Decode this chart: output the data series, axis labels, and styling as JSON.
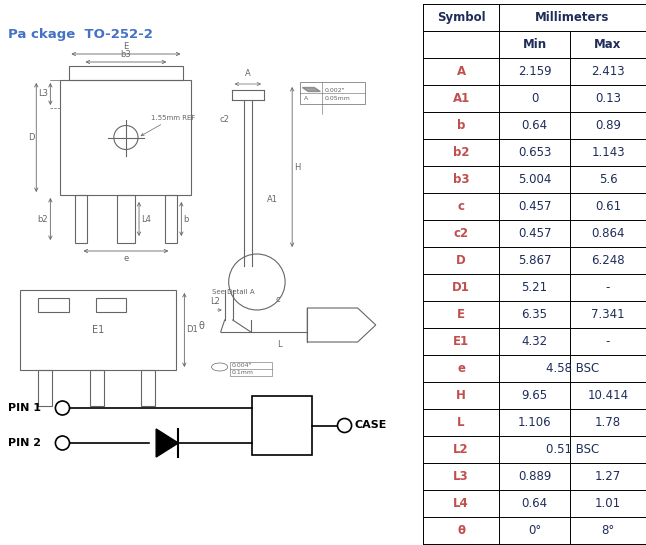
{
  "title": "Package TO-252-2",
  "title_color": "#4472C4",
  "table_symbol_color": "#C0504D",
  "table_value_color": "#1F2D5A",
  "table_header_bold_color": "#1F2D5A",
  "rows": [
    [
      "A",
      "2.159",
      "2.413"
    ],
    [
      "A1",
      "0",
      "0.13"
    ],
    [
      "b",
      "0.64",
      "0.89"
    ],
    [
      "b2",
      "0.653",
      "1.143"
    ],
    [
      "b3",
      "5.004",
      "5.6"
    ],
    [
      "c",
      "0.457",
      "0.61"
    ],
    [
      "c2",
      "0.457",
      "0.864"
    ],
    [
      "D",
      "5.867",
      "6.248"
    ],
    [
      "D1",
      "5.21",
      "-"
    ],
    [
      "E",
      "6.35",
      "7.341"
    ],
    [
      "E1",
      "4.32",
      "-"
    ],
    [
      "e",
      "4.58 BSC",
      ""
    ],
    [
      "H",
      "9.65",
      "10.414"
    ],
    [
      "L",
      "1.106",
      "1.78"
    ],
    [
      "L2",
      "0.51 BSC",
      ""
    ],
    [
      "L3",
      "0.889",
      "1.27"
    ],
    [
      "L4",
      "0.64",
      "1.01"
    ],
    [
      "θ",
      "0°",
      "8°"
    ]
  ]
}
